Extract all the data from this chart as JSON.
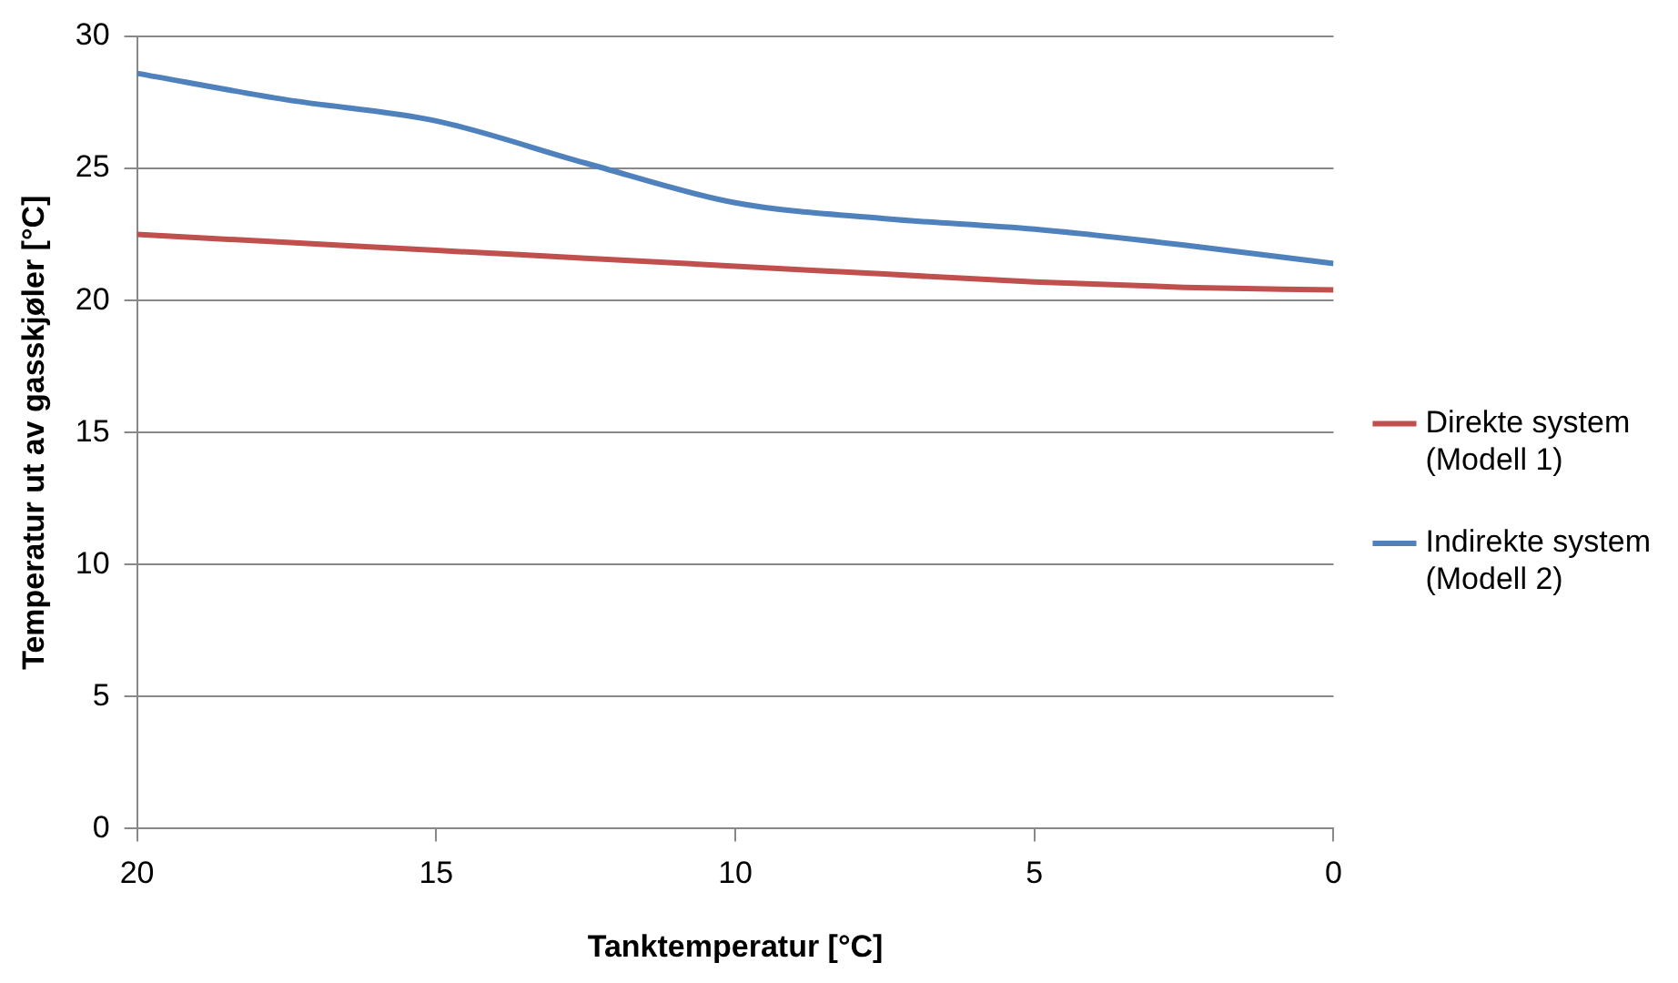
{
  "chart_data": {
    "type": "line",
    "xlabel": "Tanktemperatur [°C]",
    "ylabel": "Temperatur ut av gasskjøler [°C]",
    "x": [
      20,
      17.5,
      15,
      12.5,
      10,
      7.5,
      5,
      2.5,
      0
    ],
    "series": [
      {
        "name": "Direkte system (Modell 1)",
        "color": "#c0504d",
        "values": [
          22.5,
          22.2,
          21.9,
          21.6,
          21.3,
          21.0,
          20.7,
          20.5,
          20.4
        ]
      },
      {
        "name": "Indirekte system (Modell 2)",
        "color": "#4f81bd",
        "values": [
          28.6,
          27.6,
          26.8,
          25.2,
          23.7,
          23.1,
          22.7,
          22.1,
          21.4
        ]
      }
    ],
    "xlim": [
      20,
      0
    ],
    "xticks": [
      20,
      15,
      10,
      5,
      0
    ],
    "ylim": [
      0,
      30
    ],
    "yticks": [
      0,
      5,
      10,
      15,
      20,
      25,
      30
    ],
    "grid": "y",
    "legend": "right",
    "marker": "none",
    "line_style": "solid"
  }
}
